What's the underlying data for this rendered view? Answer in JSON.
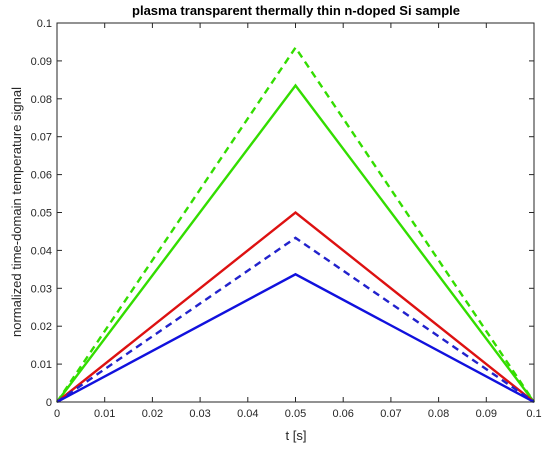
{
  "chart_data": {
    "type": "line",
    "title": "plasma transparent thermally thin n-doped Si sample",
    "xlabel": "t [s]",
    "ylabel": "normalized time-domain temperature signal",
    "xlim": [
      0,
      0.1
    ],
    "ylim": [
      0,
      0.1
    ],
    "grid": false,
    "xticks": [
      "0",
      "0.01",
      "0.02",
      "0.03",
      "0.04",
      "0.05",
      "0.06",
      "0.07",
      "0.08",
      "0.09",
      "0.1"
    ],
    "yticks": [
      "0",
      "0.01",
      "0.02",
      "0.03",
      "0.04",
      "0.05",
      "0.06",
      "0.07",
      "0.08",
      "0.09",
      "0.1"
    ],
    "series": [
      {
        "color": "#33dd00",
        "style": "dashed",
        "x": [
          0,
          0.05,
          0.1
        ],
        "y": [
          0,
          0.0935,
          0
        ]
      },
      {
        "color": "#33dd00",
        "style": "solid",
        "x": [
          0,
          0.05,
          0.1
        ],
        "y": [
          0,
          0.0835,
          0
        ]
      },
      {
        "color": "#dd1111",
        "style": "solid",
        "x": [
          0,
          0.05,
          0.1
        ],
        "y": [
          0,
          0.05,
          0
        ]
      },
      {
        "color": "#2222cc",
        "style": "dashed",
        "x": [
          0,
          0.05,
          0.1
        ],
        "y": [
          0,
          0.0433,
          0
        ]
      },
      {
        "color": "#1111dd",
        "style": "solid",
        "x": [
          0,
          0.05,
          0.1
        ],
        "y": [
          0,
          0.0337,
          0
        ]
      }
    ]
  }
}
